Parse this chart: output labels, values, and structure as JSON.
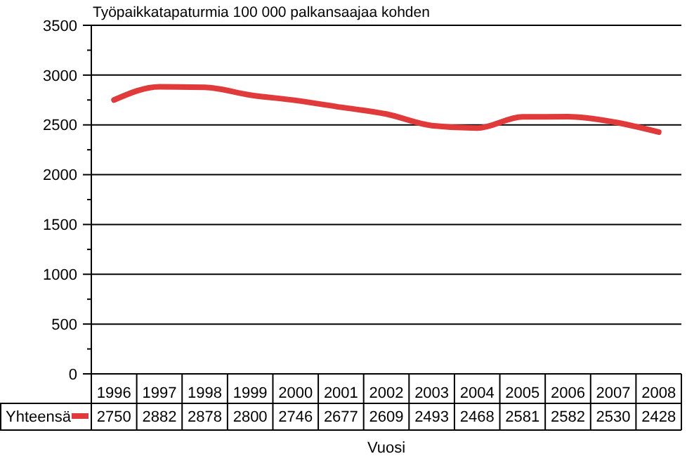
{
  "chart_data": {
    "type": "line",
    "title": "Työpaikkatapaturmia 100 000 palkansaajaa kohden",
    "xlabel": "Vuosi",
    "categories": [
      "1996",
      "1997",
      "1998",
      "1999",
      "2000",
      "2001",
      "2002",
      "2003",
      "2004",
      "2005",
      "2006",
      "2007",
      "2008"
    ],
    "series": [
      {
        "name": "Yhteensä",
        "color": "#e03a3a",
        "values": [
          2750,
          2882,
          2878,
          2800,
          2746,
          2677,
          2609,
          2493,
          2468,
          2581,
          2582,
          2530,
          2428
        ]
      }
    ],
    "ylim": [
      0,
      3500
    ],
    "yticks": [
      0,
      {
        "value": 250,
        "label": null
      },
      500,
      {
        "value": 750,
        "label": null
      },
      1000,
      {
        "value": 1250,
        "label": null
      },
      1500,
      {
        "value": 1750,
        "label": null
      },
      2000,
      {
        "value": 2250,
        "label": null
      },
      2500,
      {
        "value": 2750,
        "label": null
      },
      3000,
      {
        "value": 3250,
        "label": null
      },
      3500
    ],
    "grid": "y",
    "legend": "bottom",
    "data_labels": true,
    "marker": "none",
    "line_style": "solid"
  }
}
